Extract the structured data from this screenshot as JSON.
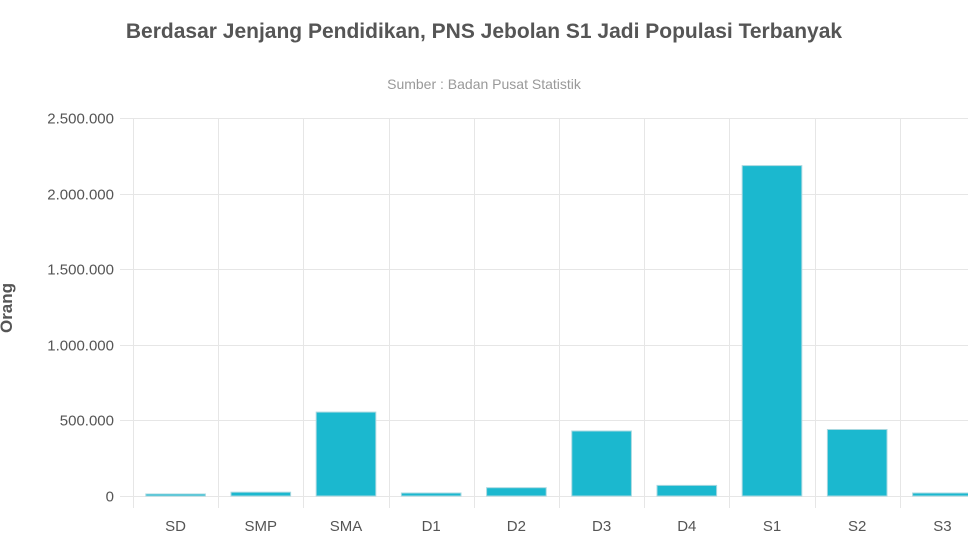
{
  "chart_data": {
    "type": "bar",
    "title": "Berdasar Jenjang Pendidikan, PNS Jebolan S1 Jadi Populasi Terbanyak",
    "subtitle": "Sumber : Badan Pusat Statistik",
    "ylabel": "Orang",
    "ylim": [
      0,
      2500000
    ],
    "yticks": [
      0,
      500000,
      1000000,
      1500000,
      2000000,
      2500000
    ],
    "ytick_labels": [
      "0",
      "500.000",
      "1.000.000",
      "1.500.000",
      "2.000.000",
      "2.500.000"
    ],
    "categories": [
      "SD",
      "SMP",
      "SMA",
      "D1",
      "D2",
      "D3",
      "D4",
      "S1",
      "S2",
      "S3"
    ],
    "values": [
      8000,
      25000,
      555000,
      20000,
      55000,
      430000,
      70000,
      2185000,
      440000,
      20000
    ],
    "grid": true,
    "colors": {
      "bar": "#1bb8cf",
      "bar_stroke": "#a8d8e0"
    }
  }
}
